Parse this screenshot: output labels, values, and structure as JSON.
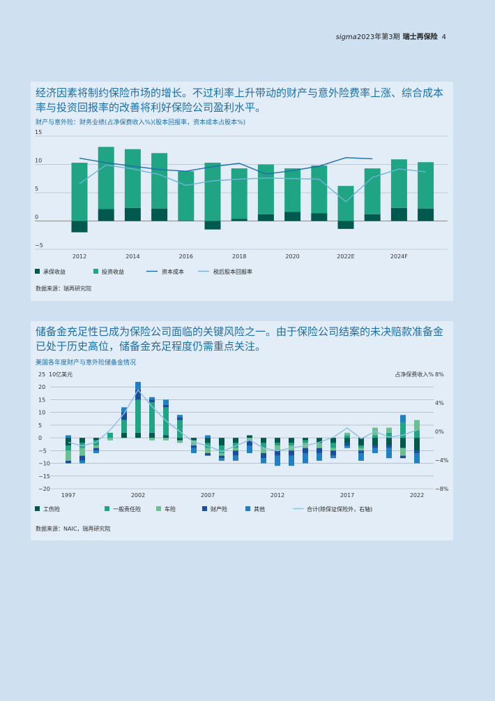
{
  "header": {
    "sigma": "sigma",
    "issue": "2023年第3期",
    "brand": "瑞士再保险",
    "page": "4"
  },
  "panel1": {
    "headline": "经济因素将制约保险市场的增长。不过利率上升带动的财产与意外险费率上涨、综合成本率与投资回报率的改善将利好保险公司盈利水平。",
    "subtitle": "财产与意外险：财务业绩(占净保费收入%)(股本回报率，资本成本占股本%)",
    "source": "数据来源：瑞再研究院"
  },
  "panel2": {
    "headline": "储备金充足性已成为保险公司面临的关键风险之一。由于保险公司结案的未决赔款准备金已处于历史高位，储备金充足程度仍需重点关注。",
    "subtitle": "美国各年度财产与意外险储备金情况",
    "source": "数据来源：NAIC，瑞再研究院"
  },
  "colors": {
    "uw": "#00594f",
    "inv": "#1fa584",
    "coc": "#1b6ea8",
    "roe": "#6fb3d8",
    "wc": "#00594f",
    "gl": "#1fa584",
    "auto": "#6cc08f",
    "prop": "#1a4e9c",
    "other": "#1f80c4",
    "total": "#8fbfe0"
  },
  "chart_data": [
    {
      "type": "bar",
      "title": "财产与意外险：财务业绩(占净保费收入%)(股本回报率，资本成本占股本%)",
      "categories": [
        "2012",
        "2013",
        "2014",
        "2015",
        "2016",
        "2017",
        "2018",
        "2019",
        "2020",
        "2021",
        "2022E",
        "2023F",
        "2024F",
        "2025F"
      ],
      "tick_labels": [
        "2012",
        "",
        "2014",
        "",
        "2016",
        "",
        "2018",
        "",
        "2020",
        "",
        "2022E",
        "",
        "2024F",
        ""
      ],
      "y_ticks": [
        "15",
        "10",
        "5",
        "0",
        "−5"
      ],
      "ylim": [
        -5,
        15
      ],
      "series": [
        {
          "name": "承保收益",
          "kind": "bar",
          "values": [
            -2.0,
            2.1,
            2.3,
            2.2,
            0.1,
            -1.5,
            0.4,
            1.2,
            1.6,
            1.4,
            -1.4,
            1.2,
            2.3,
            2.2
          ]
        },
        {
          "name": "投资收益",
          "kind": "bar",
          "values": [
            10.3,
            11.0,
            10.4,
            9.8,
            8.7,
            10.3,
            8.9,
            8.8,
            7.7,
            8.4,
            6.2,
            8.1,
            8.6,
            8.2
          ]
        },
        {
          "name": "资本成本",
          "kind": "line",
          "values": [
            11.1,
            10.3,
            9.7,
            9.1,
            8.8,
            9.6,
            10.2,
            8.3,
            8.9,
            9.7,
            11.2,
            11.0,
            null,
            null
          ]
        },
        {
          "name": "税后股本回报率",
          "kind": "line",
          "values": [
            6.6,
            9.9,
            9.2,
            8.2,
            6.3,
            7.1,
            7.4,
            7.6,
            7.5,
            7.4,
            3.4,
            7.7,
            9.2,
            8.7
          ]
        }
      ]
    },
    {
      "type": "bar",
      "title": "美国各年度财产与意外险储备金情况",
      "ylabel": "10亿美元",
      "y2label": "占净保费收入%",
      "categories": [
        "1997",
        "1998",
        "1999",
        "2000",
        "2001",
        "2002",
        "2003",
        "2004",
        "2005",
        "2006",
        "2007",
        "2008",
        "2009",
        "2010",
        "2011",
        "2012",
        "2013",
        "2014",
        "2015",
        "2016",
        "2017",
        "2018",
        "2019",
        "2020",
        "2021",
        "2022"
      ],
      "tick_labels": [
        "1997",
        "",
        "",
        "",
        "",
        "2002",
        "",
        "",
        "",
        "",
        "2007",
        "",
        "",
        "",
        "",
        "2012",
        "",
        "",
        "",
        "",
        "2017",
        "",
        "",
        "",
        "",
        "2022"
      ],
      "y_ticks": [
        "25",
        "20",
        "15",
        "10",
        "5",
        "0",
        "−5",
        "−10",
        "−15",
        "−20"
      ],
      "y2_ticks": [
        "8%",
        "4%",
        "0%",
        "−4%",
        "−8%"
      ],
      "ylim": [
        -20,
        25
      ],
      "y2lim": [
        -8,
        8
      ],
      "series": [
        {
          "name": "工伤险",
          "values": [
            -3,
            -2,
            -1,
            0,
            2,
            2,
            2,
            1,
            -1,
            -1,
            -2,
            -3,
            -2,
            1,
            -2,
            -2,
            -2,
            -1,
            -2,
            -2,
            -2,
            -3,
            -3,
            -3,
            -4,
            -5
          ]
        },
        {
          "name": "一般责任险",
          "values": [
            -2,
            -2,
            -2,
            2,
            5,
            13,
            12,
            11,
            7,
            0,
            -2,
            -3,
            -2,
            0,
            -2,
            -1,
            -1,
            -1,
            0,
            -2,
            1,
            -1,
            1,
            2,
            6,
            3
          ]
        },
        {
          "name": "车险",
          "values": [
            -4,
            -3,
            -1,
            -1,
            0,
            0,
            -1,
            -1,
            -1,
            -2,
            -2,
            -1,
            -1,
            -1,
            -2,
            -2,
            -2,
            -2,
            -2,
            -1,
            1,
            -1,
            3,
            2,
            -3,
            4
          ]
        },
        {
          "name": "财产险",
          "values": [
            -1,
            -2,
            -1,
            0,
            3,
            4,
            1,
            1,
            1,
            -1,
            -1,
            -1,
            -2,
            -2,
            -2,
            -2,
            -2,
            -2,
            -2,
            -2,
            -1,
            -1,
            -1,
            -1,
            -1,
            -1
          ]
        },
        {
          "name": "其他",
          "values": [
            1,
            -1,
            -1,
            0,
            2,
            3,
            1,
            2,
            1,
            -2,
            1,
            -1,
            -2,
            -3,
            -2,
            -4,
            -4,
            -4,
            -3,
            -1,
            -1,
            -3,
            -2,
            -4,
            3,
            -4
          ]
        },
        {
          "name": "合计(除保证保险外，右轴)",
          "axis": "right",
          "values": [
            -1.5,
            -2.0,
            -1.5,
            0.2,
            2.5,
            5.8,
            3.5,
            1.5,
            0.0,
            -1.5,
            -2.0,
            -2.8,
            -2.0,
            -1.2,
            -2.3,
            -2.7,
            -2.3,
            -2.0,
            -1.5,
            -0.8,
            0.5,
            -1.0,
            0.0,
            -0.8,
            -0.5,
            0.2
          ]
        }
      ]
    }
  ]
}
